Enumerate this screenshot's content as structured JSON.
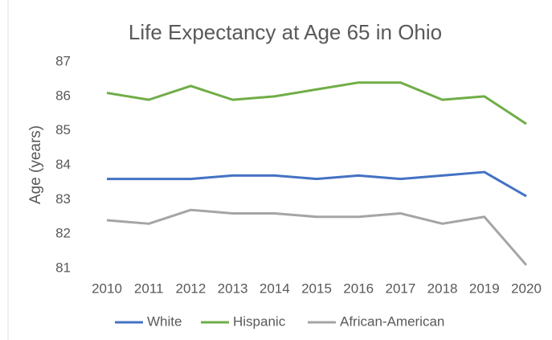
{
  "chart_data": {
    "type": "line",
    "title": "Life Expectancy at Age 65 in Ohio",
    "y_label": "Age (years)",
    "categories": [
      "2010",
      "2011",
      "2012",
      "2013",
      "2014",
      "2015",
      "2016",
      "2017",
      "2018",
      "2019",
      "2020"
    ],
    "series": [
      {
        "name": "White",
        "color": "#4472c4",
        "values": [
          83.6,
          83.6,
          83.6,
          83.7,
          83.7,
          83.6,
          83.7,
          83.6,
          83.7,
          83.8,
          83.1
        ]
      },
      {
        "name": "Hispanic",
        "color": "#70ad47",
        "values": [
          86.1,
          85.9,
          86.3,
          85.9,
          86.0,
          86.2,
          86.4,
          86.4,
          85.9,
          86.0,
          85.2
        ]
      },
      {
        "name": "African-American",
        "color": "#a5a5a5",
        "values": [
          82.4,
          82.3,
          82.7,
          82.6,
          82.6,
          82.5,
          82.5,
          82.6,
          82.3,
          82.5,
          81.1
        ]
      }
    ],
    "ylim": [
      81,
      87
    ],
    "yticks": [
      81,
      82,
      83,
      84,
      85,
      86,
      87
    ],
    "grid": false,
    "legend": "bottom"
  }
}
